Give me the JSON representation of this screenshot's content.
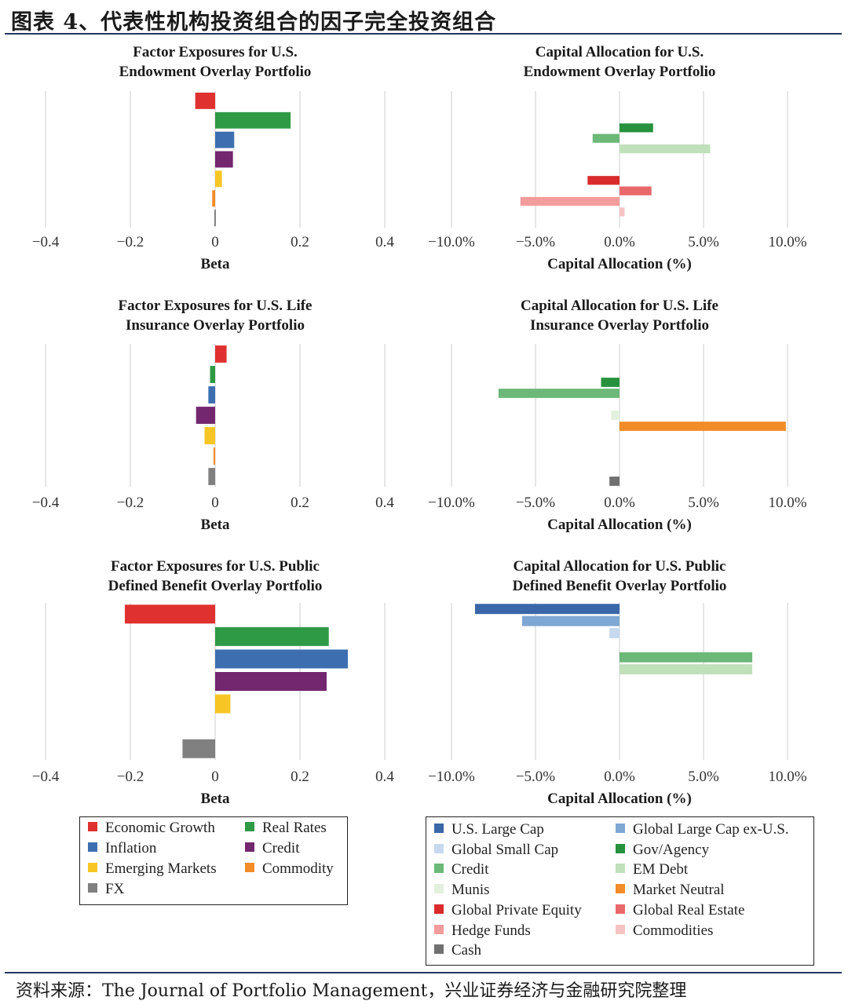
{
  "figure_title": "图表 4、代表性机构投资组合的因子完全投资组合",
  "source_text": "资料来源：The Journal of Portfolio Management，兴业证券经济与金融研究院整理",
  "factor_colors": {
    "Economic Growth": "#e03131",
    "Real Rates": "#2f9a45",
    "Inflation": "#3d6fb0",
    "Credit": "#73276f",
    "Emerging Markets": "#f7c625",
    "Commodity": "#f28c28",
    "FX": "#808080"
  },
  "asset_colors": {
    "U.S. Large Cap": "#3a67a8",
    "Global Large Cap ex-U.S.": "#7ea7d4",
    "Global Small Cap": "#c6d9ee",
    "Gov/Agency": "#27913e",
    "Credit": "#6cb878",
    "EM Debt": "#bfe0bb",
    "Munis": "#e2f0dd",
    "Market Neutral": "#f28c28",
    "Global Private Equity": "#d92b2b",
    "Global Real Estate": "#e9686b",
    "Hedge Funds": "#f39c9c",
    "Commodities": "#f6c3c3",
    "Cash": "#707070"
  },
  "legend_factors": [
    "Economic Growth",
    "Real Rates",
    "Inflation",
    "Credit",
    "Emerging Markets",
    "Commodity",
    "FX"
  ],
  "legend_assets": [
    "U.S. Large Cap",
    "Global Large Cap ex-U.S.",
    "Global Small Cap",
    "Gov/Agency",
    "Credit",
    "EM Debt",
    "Munis",
    "Market Neutral",
    "Global Private Equity",
    "Global Real Estate",
    "Hedge Funds",
    "Commodities",
    "Cash"
  ],
  "chart_data": [
    {
      "type": "bar",
      "orientation": "horizontal",
      "title": [
        "Factor Exposures for U.S.",
        "Endowment Overlay Portfolio"
      ],
      "xlabel": "Beta",
      "xlim": [
        -0.4,
        0.4
      ],
      "xticks": [
        -0.4,
        -0.2,
        0,
        0.2,
        0.4
      ],
      "xtick_labels": [
        "−0.4",
        "−0.2",
        "0",
        "0.2",
        "0.4"
      ],
      "categories": [
        "Economic Growth",
        "Real Rates",
        "Inflation",
        "Credit",
        "Emerging Markets",
        "Commodity",
        "FX"
      ],
      "values": [
        -0.047,
        0.178,
        0.045,
        0.042,
        0.016,
        -0.007,
        -0.002
      ]
    },
    {
      "type": "bar",
      "orientation": "horizontal",
      "title": [
        "Capital Allocation for U.S.",
        "Endowment Overlay Portfolio"
      ],
      "xlabel": "Capital Allocation (%)",
      "xlim": [
        -10,
        10
      ],
      "xticks": [
        -10,
        -5,
        0,
        5,
        10
      ],
      "xtick_labels": [
        "−10.0%",
        "−5.0%",
        "0.0%",
        "5.0%",
        "10.0%"
      ],
      "categories": [
        "U.S. Large Cap",
        "Global Large Cap ex-U.S.",
        "Global Small Cap",
        "Gov/Agency",
        "Credit",
        "EM Debt",
        "Munis",
        "Market Neutral",
        "Global Private Equity",
        "Global Real Estate",
        "Hedge Funds",
        "Commodities",
        "Cash"
      ],
      "values": [
        0,
        0,
        0,
        2.0,
        -1.6,
        5.4,
        0,
        0,
        -1.9,
        1.9,
        -5.9,
        0.3,
        0
      ]
    },
    {
      "type": "bar",
      "orientation": "horizontal",
      "title": [
        "Factor Exposures for U.S. Life",
        "Insurance Overlay Portfolio"
      ],
      "xlabel": "Beta",
      "xlim": [
        -0.4,
        0.4
      ],
      "xticks": [
        -0.4,
        -0.2,
        0,
        0.2,
        0.4
      ],
      "xtick_labels": [
        "−0.4",
        "−0.2",
        "0",
        "0.2",
        "0.4"
      ],
      "categories": [
        "Economic Growth",
        "Real Rates",
        "Inflation",
        "Credit",
        "Emerging Markets",
        "Commodity",
        "FX"
      ],
      "values": [
        0.027,
        -0.012,
        -0.016,
        -0.045,
        -0.025,
        -0.004,
        -0.016
      ]
    },
    {
      "type": "bar",
      "orientation": "horizontal",
      "title": [
        "Capital Allocation for U.S. Life",
        "Insurance Overlay Portfolio"
      ],
      "xlabel": "Capital Allocation (%)",
      "xlim": [
        -10,
        10
      ],
      "xticks": [
        -10,
        -5,
        0,
        5,
        10
      ],
      "xtick_labels": [
        "−10.0%",
        "−5.0%",
        "0.0%",
        "5.0%",
        "10.0%"
      ],
      "categories": [
        "U.S. Large Cap",
        "Global Large Cap ex-U.S.",
        "Global Small Cap",
        "Gov/Agency",
        "Credit",
        "EM Debt",
        "Munis",
        "Market Neutral",
        "Global Private Equity",
        "Global Real Estate",
        "Hedge Funds",
        "Commodities",
        "Cash"
      ],
      "values": [
        0,
        0,
        0,
        -1.1,
        -7.2,
        0,
        -0.5,
        9.9,
        0,
        0,
        0,
        0,
        -0.6
      ]
    },
    {
      "type": "bar",
      "orientation": "horizontal",
      "title": [
        "Factor Exposures for U.S. Public",
        "Defined Benefit Overlay Portfolio"
      ],
      "xlabel": "Beta",
      "xlim": [
        -0.4,
        0.4
      ],
      "xticks": [
        -0.4,
        -0.2,
        0,
        0.2,
        0.4
      ],
      "xtick_labels": [
        "−0.4",
        "−0.2",
        "0",
        "0.2",
        "0.4"
      ],
      "categories": [
        "Economic Growth",
        "Real Rates",
        "Inflation",
        "Credit",
        "Emerging Markets",
        "Commodity",
        "FX"
      ],
      "values": [
        -0.213,
        0.268,
        0.313,
        0.263,
        0.036,
        0,
        -0.077
      ]
    },
    {
      "type": "bar",
      "orientation": "horizontal",
      "title": [
        "Capital Allocation for U.S. Public",
        "Defined Benefit Overlay Portfolio"
      ],
      "xlabel": "Capital Allocation (%)",
      "xlim": [
        -10,
        10
      ],
      "xticks": [
        -10,
        -5,
        0,
        5,
        10
      ],
      "xtick_labels": [
        "−10.0%",
        "−5.0%",
        "0.0%",
        "5.0%",
        "10.0%"
      ],
      "categories": [
        "U.S. Large Cap",
        "Global Large Cap ex-U.S.",
        "Global Small Cap",
        "Gov/Agency",
        "Credit",
        "EM Debt",
        "Munis",
        "Market Neutral",
        "Global Private Equity",
        "Global Real Estate",
        "Hedge Funds",
        "Commodities",
        "Cash"
      ],
      "values": [
        -8.6,
        -5.8,
        -0.6,
        0,
        7.9,
        7.9,
        0,
        0,
        0,
        0,
        0,
        0,
        0
      ]
    }
  ]
}
